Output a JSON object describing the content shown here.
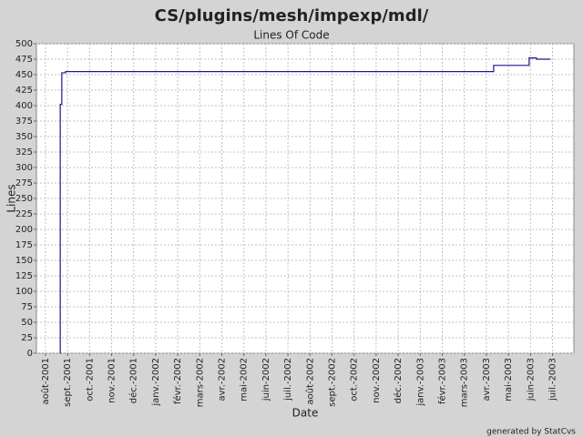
{
  "chart_data": {
    "type": "line",
    "step": "post",
    "title": "CS/plugins/mesh/impexp/mdl/",
    "subtitle": "Lines Of Code",
    "xlabel": "Date",
    "ylabel": "Lines",
    "x": [
      0.66,
      0.67,
      0.74,
      0.91,
      20.33,
      21.94,
      22.27,
      22.9
    ],
    "values": [
      0,
      402,
      453,
      455,
      465,
      477,
      475,
      475
    ],
    "color": "#1a1a8c",
    "xlim": [
      -0.41,
      23.97
    ],
    "xticks": [
      {
        "value": 0,
        "label": "août-2001"
      },
      {
        "value": 1,
        "label": "sept.-2001"
      },
      {
        "value": 2,
        "label": "oct.-2001"
      },
      {
        "value": 3,
        "label": "nov.-2001"
      },
      {
        "value": 4,
        "label": "déc.-2001"
      },
      {
        "value": 5,
        "label": "janv.-2002"
      },
      {
        "value": 6,
        "label": "févr.-2002"
      },
      {
        "value": 7,
        "label": "mars-2002"
      },
      {
        "value": 8,
        "label": "avr.-2002"
      },
      {
        "value": 9,
        "label": "mai-2002"
      },
      {
        "value": 10,
        "label": "juin-2002"
      },
      {
        "value": 11,
        "label": "juil.-2002"
      },
      {
        "value": 12,
        "label": "août-2002"
      },
      {
        "value": 13,
        "label": "sept.-2002"
      },
      {
        "value": 14,
        "label": "oct.-2002"
      },
      {
        "value": 15,
        "label": "nov.-2002"
      },
      {
        "value": 16,
        "label": "déc.-2002"
      },
      {
        "value": 17,
        "label": "janv.-2003"
      },
      {
        "value": 18,
        "label": "févr.-2003"
      },
      {
        "value": 19,
        "label": "mars-2003"
      },
      {
        "value": 20,
        "label": "avr.-2003"
      },
      {
        "value": 21,
        "label": "mai-2003"
      },
      {
        "value": 22,
        "label": "juin-2003"
      },
      {
        "value": 23,
        "label": "juil.-2003"
      }
    ],
    "ylim": [
      0,
      500
    ],
    "yticks": [
      0,
      25,
      50,
      75,
      100,
      125,
      150,
      175,
      200,
      225,
      250,
      275,
      300,
      325,
      350,
      375,
      400,
      425,
      450,
      475,
      500
    ],
    "grid": true
  },
  "footer": "generated by StatCvs"
}
